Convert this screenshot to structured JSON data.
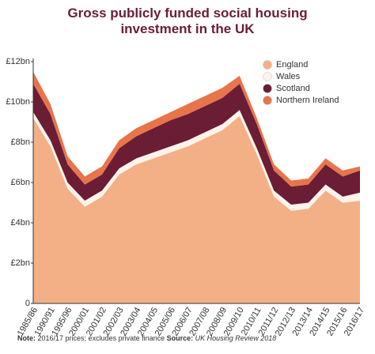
{
  "chart_data": {
    "type": "stacked-area",
    "title": [
      "Gross publicly funded social housing",
      "investment in the UK"
    ],
    "categories": [
      "1985/86",
      "1990/91",
      "1995/96",
      "2000/01",
      "2001/02",
      "2002/03",
      "2003/04",
      "2004/05",
      "2005/06",
      "2006/07",
      "2007/08",
      "2008/09",
      "2009/10",
      "2010/11",
      "2011/12",
      "2012/13",
      "2013/14",
      "2014/15",
      "2015/16",
      "2016/17"
    ],
    "series": [
      {
        "name": "England",
        "color": "#f3b086",
        "values": [
          9.2,
          7.8,
          5.7,
          4.8,
          5.3,
          6.4,
          6.9,
          7.2,
          7.5,
          7.8,
          8.2,
          8.6,
          9.3,
          7.4,
          5.3,
          4.6,
          4.7,
          5.6,
          5.0,
          5.1
        ]
      },
      {
        "name": "Wales",
        "color": "#fdf3ea",
        "values": [
          0.3,
          0.3,
          0.3,
          0.3,
          0.3,
          0.3,
          0.3,
          0.3,
          0.3,
          0.3,
          0.3,
          0.3,
          0.3,
          0.3,
          0.3,
          0.3,
          0.3,
          0.3,
          0.3,
          0.4
        ]
      },
      {
        "name": "Scotland",
        "color": "#6b1d35",
        "values": [
          1.4,
          1.3,
          0.9,
          0.8,
          0.8,
          1.0,
          1.1,
          1.2,
          1.3,
          1.3,
          1.3,
          1.3,
          1.3,
          1.2,
          1.0,
          0.9,
          0.9,
          1.0,
          1.0,
          1.1
        ]
      },
      {
        "name": "Northern Ireland",
        "color": "#e8744a",
        "values": [
          0.6,
          0.5,
          0.4,
          0.4,
          0.4,
          0.4,
          0.4,
          0.4,
          0.4,
          0.5,
          0.5,
          0.5,
          0.4,
          0.3,
          0.3,
          0.3,
          0.3,
          0.3,
          0.3,
          0.2
        ]
      }
    ],
    "ylim": [
      0,
      12
    ],
    "yticks": [
      0,
      {
        "value": 2,
        "label": "£2bn"
      },
      {
        "value": 4,
        "label": "£4bn"
      },
      {
        "value": 6,
        "label": "£6bn"
      },
      {
        "value": 8,
        "label": "£8bn"
      },
      {
        "value": 10,
        "label": "£10bn"
      },
      {
        "value": 12,
        "label": "£12bn"
      }
    ],
    "note_label": "Note:",
    "note_text": "2016/17 prices; excludes private finance",
    "source_label": "Source:",
    "source_text": "UK Housing Review 2018"
  }
}
